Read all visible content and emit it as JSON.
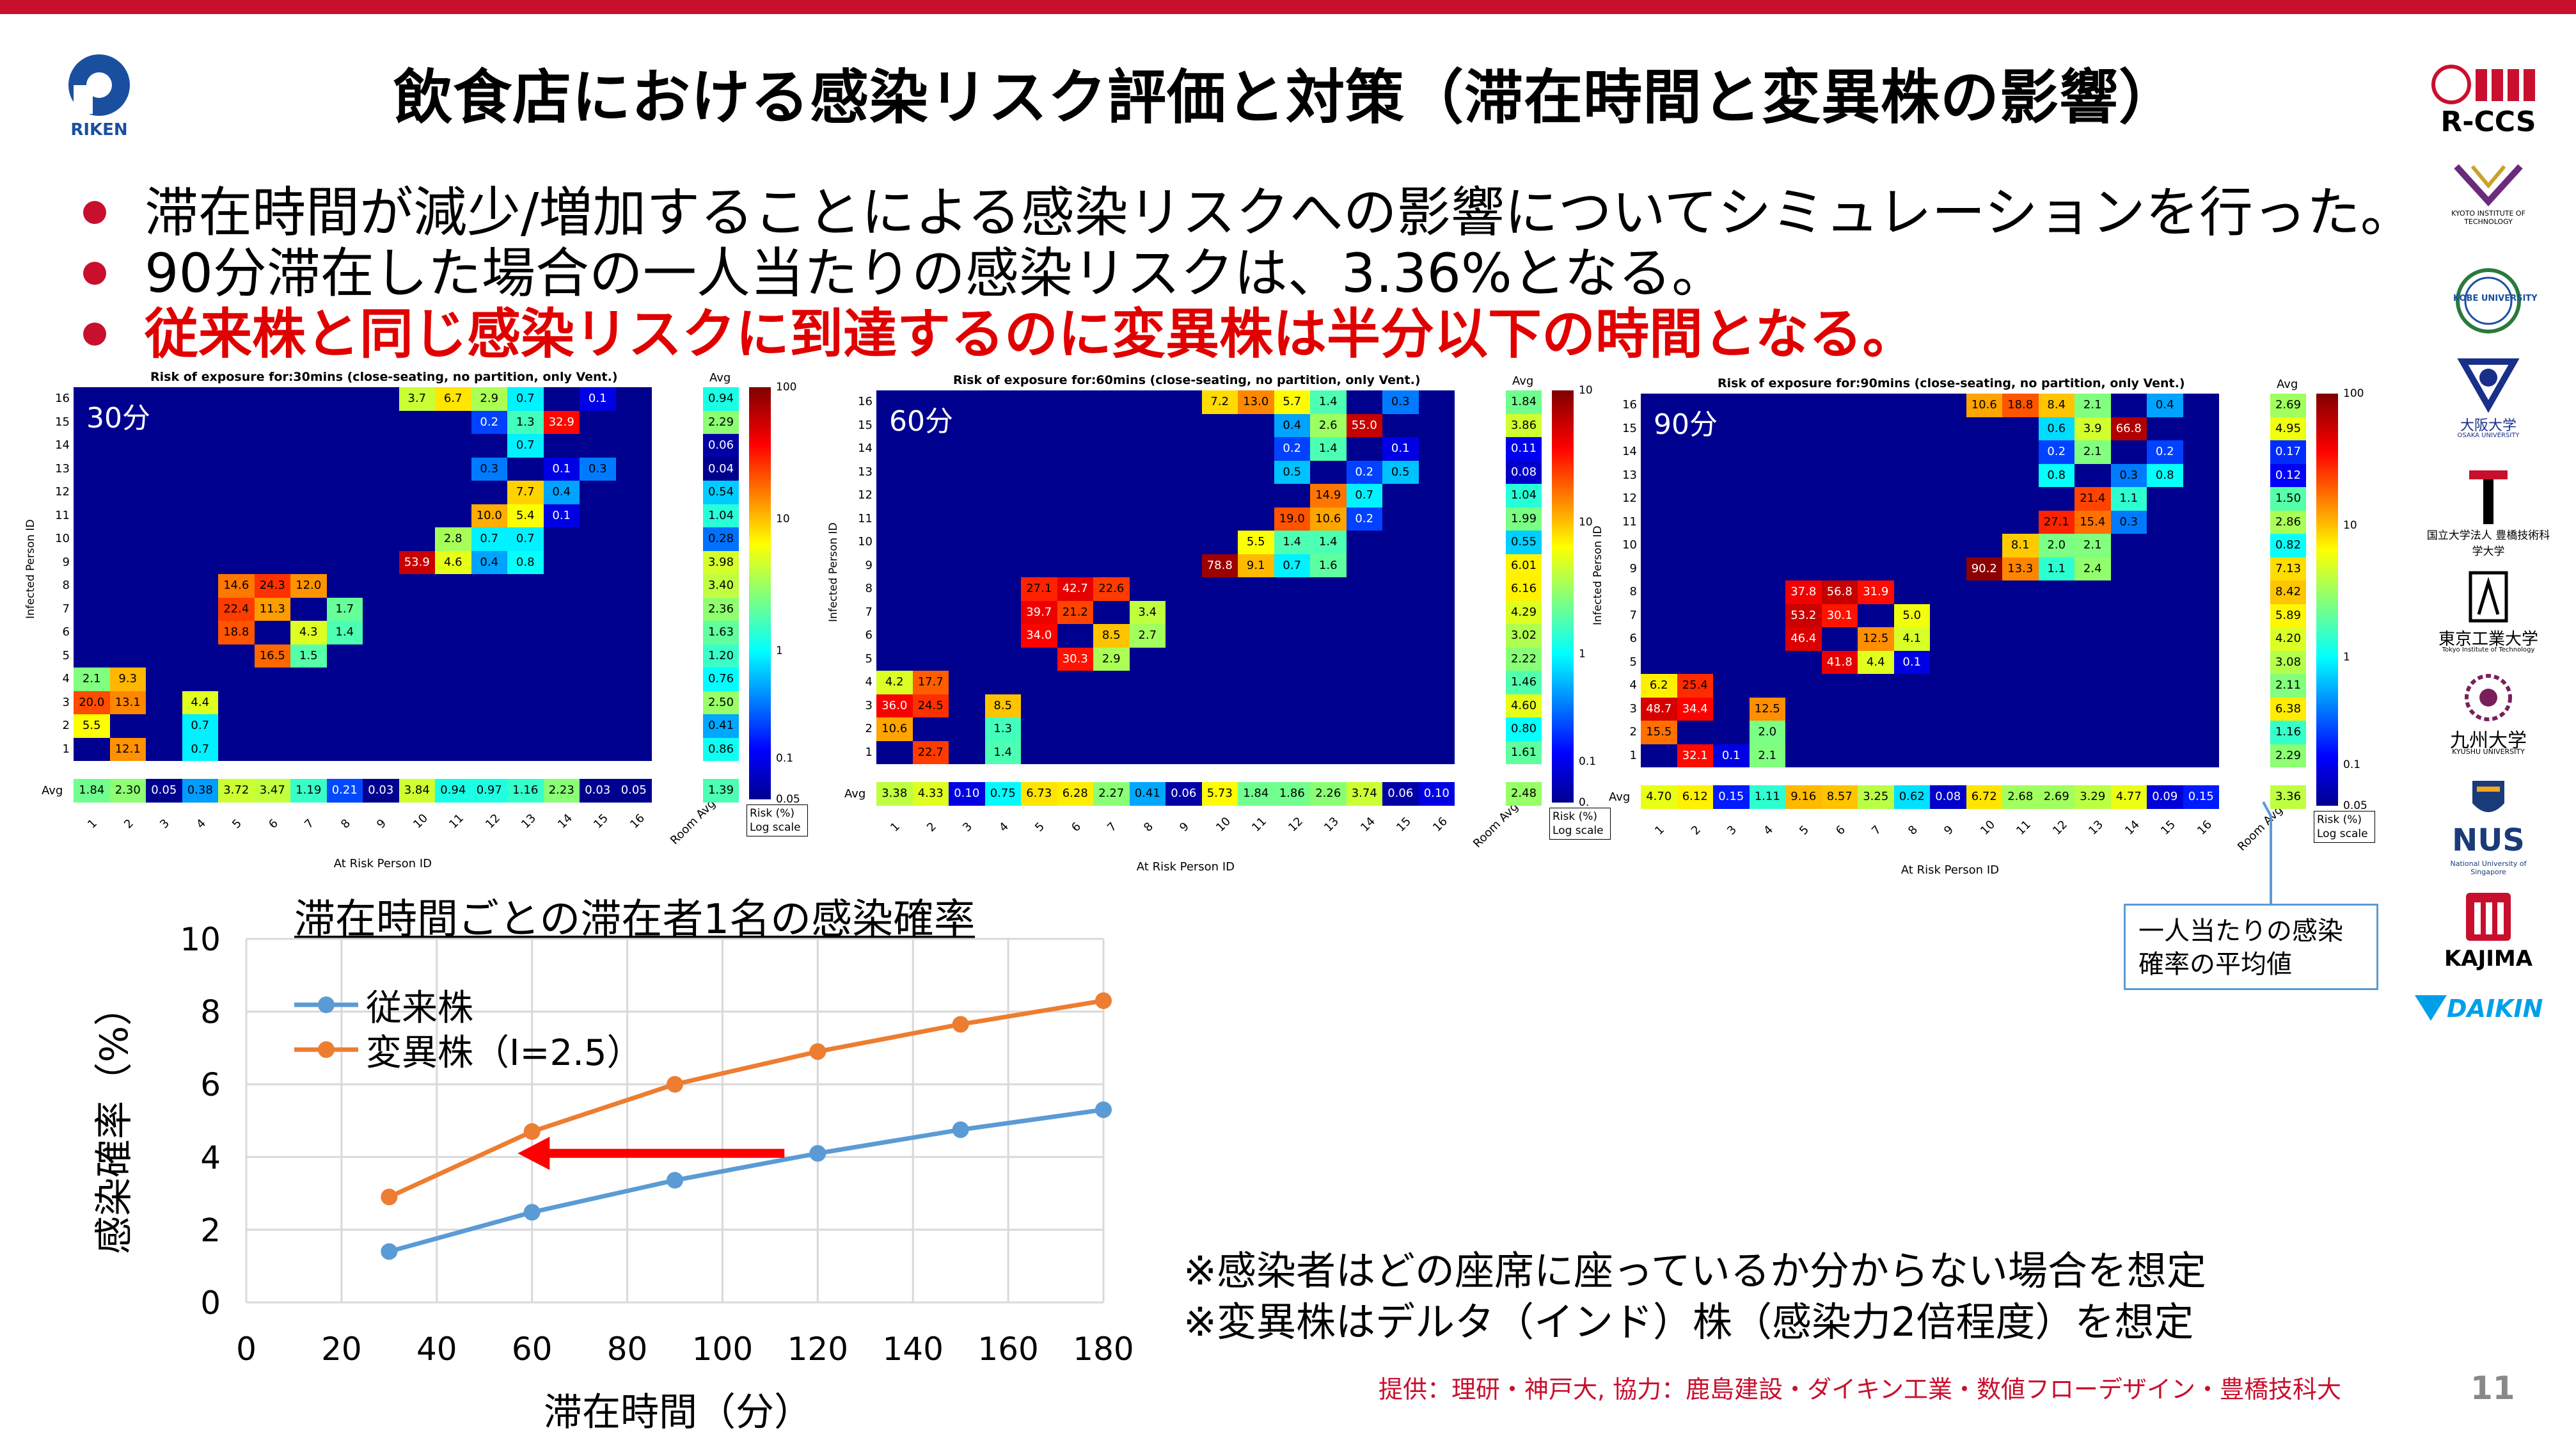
{
  "slide": {
    "title": "飲食店における感染リスク評価と対策（滞在時間と変異株の影響）",
    "bullets": [
      "滞在時間が減少/増加することによる感染リスクへの影響についてシミュレーションを行った。",
      "90分滞在した場合の一人当たりの感染リスクは、3.36%となる。",
      "従来株と同じ感染リスクに到達するのに変異株は半分以下の時間となる。"
    ],
    "notes": [
      "※感染者はどの座席に座っているか分からない場合を想定",
      "※変異株はデルタ（インド）株（感染力2倍程度）を想定"
    ],
    "credit": "提供：理研・神戸大, 協力：鹿島建設・ダイキン工業・数値フローデザイン・豊橋技科大",
    "page_number": "11",
    "callout": "一人当たりの感染確率の平均値",
    "colors": {
      "accent_red": "#c8102e",
      "bullet_red": "#e00000",
      "series_blue": "#5b9bd5",
      "series_orange": "#ed7d31",
      "heatmap_bg": "#00008f"
    }
  },
  "logos": {
    "riken": "RIKEN",
    "rccs": "R-CCS",
    "kyoto": "KYOTO INSTITUTE OF TECHNOLOGY",
    "kobe": "KOBE UNIVERSITY",
    "osaka": "大阪大学",
    "osaka_sub": "OSAKA UNIVERSITY",
    "toyohashi": "国立大学法人 豊橋技術科学大学",
    "tokyotech": "東京工業大学",
    "tokyotech_sub": "Tokyo Institute of Technology",
    "kyushu": "九州大学",
    "kyushu_sub": "KYUSHU UNIVERSITY",
    "nus": "NUS",
    "nus_sub": "National University of Singapore",
    "kajima": "KAJIMA",
    "daikin": "DAIKIN"
  },
  "heatmaps": [
    {
      "label": "30分",
      "title": "Risk of exposure for:30mins (close-seating, no partition, only Vent.)",
      "ylabel": "Infected Person ID",
      "xlabel": "At Risk Person ID",
      "avg_header": "Avg",
      "room_avg_label": "Room Avg",
      "scale_label": "Risk (%) Log scale",
      "colorbar_ticks": [
        "100",
        "10",
        "1",
        "0.1",
        "0.05"
      ],
      "room_avg": "1.39",
      "row_avgs": [
        "0.94",
        "2.29",
        "0.06",
        "0.04",
        "0.54",
        "1.04",
        "0.28",
        "3.98",
        "3.40",
        "2.36",
        "1.63",
        "1.20",
        "0.76",
        "2.50",
        "0.41",
        "0.86"
      ],
      "col_avgs": [
        "1.84",
        "2.30",
        "0.05",
        "0.38",
        "3.72",
        "3.47",
        "1.19",
        "0.21",
        "0.03",
        "3.84",
        "0.94",
        "0.97",
        "1.16",
        "2.23",
        "0.03",
        "0.05"
      ],
      "cells": [
        {
          "row": 16,
          "col": 10,
          "value": "3.7"
        },
        {
          "row": 16,
          "col": 11,
          "value": "6.7"
        },
        {
          "row": 16,
          "col": 12,
          "value": "2.9"
        },
        {
          "row": 16,
          "col": 13,
          "value": "0.7"
        },
        {
          "row": 16,
          "col": 15,
          "value": "0.1"
        },
        {
          "row": 15,
          "col": 12,
          "value": "0.2"
        },
        {
          "row": 15,
          "col": 13,
          "value": "1.3"
        },
        {
          "row": 15,
          "col": 14,
          "value": "32.9"
        },
        {
          "row": 14,
          "col": 13,
          "value": "0.7"
        },
        {
          "row": 13,
          "col": 12,
          "value": "0.3"
        },
        {
          "row": 13,
          "col": 14,
          "value": "0.1"
        },
        {
          "row": 13,
          "col": 15,
          "value": "0.3"
        },
        {
          "row": 12,
          "col": 13,
          "value": "7.7"
        },
        {
          "row": 12,
          "col": 14,
          "value": "0.4"
        },
        {
          "row": 11,
          "col": 12,
          "value": "10.0"
        },
        {
          "row": 11,
          "col": 13,
          "value": "5.4"
        },
        {
          "row": 11,
          "col": 14,
          "value": "0.1"
        },
        {
          "row": 10,
          "col": 11,
          "value": "2.8"
        },
        {
          "row": 10,
          "col": 12,
          "value": "0.7"
        },
        {
          "row": 10,
          "col": 13,
          "value": "0.7"
        },
        {
          "row": 9,
          "col": 10,
          "value": "53.9"
        },
        {
          "row": 9,
          "col": 11,
          "value": "4.6"
        },
        {
          "row": 9,
          "col": 12,
          "value": "0.4"
        },
        {
          "row": 9,
          "col": 13,
          "value": "0.8"
        },
        {
          "row": 8,
          "col": 5,
          "value": "14.6"
        },
        {
          "row": 8,
          "col": 6,
          "value": "24.3"
        },
        {
          "row": 8,
          "col": 7,
          "value": "12.0"
        },
        {
          "row": 7,
          "col": 5,
          "value": "22.4"
        },
        {
          "row": 7,
          "col": 6,
          "value": "11.3"
        },
        {
          "row": 7,
          "col": 8,
          "value": "1.7"
        },
        {
          "row": 6,
          "col": 5,
          "value": "18.8"
        },
        {
          "row": 6,
          "col": 7,
          "value": "4.3"
        },
        {
          "row": 6,
          "col": 8,
          "value": "1.4"
        },
        {
          "row": 5,
          "col": 6,
          "value": "16.5"
        },
        {
          "row": 5,
          "col": 7,
          "value": "1.5"
        },
        {
          "row": 4,
          "col": 1,
          "value": "2.1"
        },
        {
          "row": 4,
          "col": 2,
          "value": "9.3"
        },
        {
          "row": 3,
          "col": 1,
          "value": "20.0"
        },
        {
          "row": 3,
          "col": 2,
          "value": "13.1"
        },
        {
          "row": 3,
          "col": 4,
          "value": "4.4"
        },
        {
          "row": 2,
          "col": 1,
          "value": "5.5"
        },
        {
          "row": 2,
          "col": 4,
          "value": "0.7"
        },
        {
          "row": 1,
          "col": 2,
          "value": "12.1"
        },
        {
          "row": 1,
          "col": 4,
          "value": "0.7"
        }
      ]
    },
    {
      "label": "60分",
      "title": "Risk of exposure for:60mins (close-seating, no partition, only Vent.)",
      "ylabel": "Infected Person ID",
      "xlabel": "At Risk Person ID",
      "avg_header": "Avg",
      "room_avg_label": "Room Avg",
      "scale_label": "Risk (%) Log scale",
      "colorbar_ticks": [
        "10",
        "10",
        "1",
        "0.1",
        "0."
      ],
      "room_avg": "2.48",
      "row_avgs": [
        "1.84",
        "3.86",
        "0.11",
        "0.08",
        "1.04",
        "1.99",
        "0.55",
        "6.01",
        "6.16",
        "4.29",
        "3.02",
        "2.22",
        "1.46",
        "4.60",
        "0.80",
        "1.61"
      ],
      "col_avgs": [
        "3.38",
        "4.33",
        "0.10",
        "0.75",
        "6.73",
        "6.28",
        "2.27",
        "0.41",
        "0.06",
        "5.73",
        "1.84",
        "1.86",
        "2.26",
        "3.74",
        "0.06",
        "0.10"
      ],
      "cells": [
        {
          "row": 16,
          "col": 10,
          "value": "7.2"
        },
        {
          "row": 16,
          "col": 11,
          "value": "13.0"
        },
        {
          "row": 16,
          "col": 12,
          "value": "5.7"
        },
        {
          "row": 16,
          "col": 13,
          "value": "1.4"
        },
        {
          "row": 16,
          "col": 15,
          "value": "0.3"
        },
        {
          "row": 15,
          "col": 12,
          "value": "0.4"
        },
        {
          "row": 15,
          "col": 13,
          "value": "2.6"
        },
        {
          "row": 15,
          "col": 14,
          "value": "55.0"
        },
        {
          "row": 14,
          "col": 12,
          "value": "0.2"
        },
        {
          "row": 14,
          "col": 13,
          "value": "1.4"
        },
        {
          "row": 14,
          "col": 15,
          "value": "0.1"
        },
        {
          "row": 13,
          "col": 12,
          "value": "0.5"
        },
        {
          "row": 13,
          "col": 14,
          "value": "0.2"
        },
        {
          "row": 13,
          "col": 15,
          "value": "0.5"
        },
        {
          "row": 12,
          "col": 13,
          "value": "14.9"
        },
        {
          "row": 12,
          "col": 14,
          "value": "0.7"
        },
        {
          "row": 11,
          "col": 12,
          "value": "19.0"
        },
        {
          "row": 11,
          "col": 13,
          "value": "10.6"
        },
        {
          "row": 11,
          "col": 14,
          "value": "0.2"
        },
        {
          "row": 10,
          "col": 11,
          "value": "5.5"
        },
        {
          "row": 10,
          "col": 12,
          "value": "1.4"
        },
        {
          "row": 10,
          "col": 13,
          "value": "1.4"
        },
        {
          "row": 9,
          "col": 10,
          "value": "78.8"
        },
        {
          "row": 9,
          "col": 11,
          "value": "9.1"
        },
        {
          "row": 9,
          "col": 12,
          "value": "0.7"
        },
        {
          "row": 9,
          "col": 13,
          "value": "1.6"
        },
        {
          "row": 8,
          "col": 5,
          "value": "27.1"
        },
        {
          "row": 8,
          "col": 6,
          "value": "42.7"
        },
        {
          "row": 8,
          "col": 7,
          "value": "22.6"
        },
        {
          "row": 7,
          "col": 5,
          "value": "39.7"
        },
        {
          "row": 7,
          "col": 6,
          "value": "21.2"
        },
        {
          "row": 7,
          "col": 8,
          "value": "3.4"
        },
        {
          "row": 6,
          "col": 5,
          "value": "34.0"
        },
        {
          "row": 6,
          "col": 7,
          "value": "8.5"
        },
        {
          "row": 6,
          "col": 8,
          "value": "2.7"
        },
        {
          "row": 5,
          "col": 6,
          "value": "30.3"
        },
        {
          "row": 5,
          "col": 7,
          "value": "2.9"
        },
        {
          "row": 4,
          "col": 1,
          "value": "4.2"
        },
        {
          "row": 4,
          "col": 2,
          "value": "17.7"
        },
        {
          "row": 3,
          "col": 1,
          "value": "36.0"
        },
        {
          "row": 3,
          "col": 2,
          "value": "24.5"
        },
        {
          "row": 3,
          "col": 4,
          "value": "8.5"
        },
        {
          "row": 2,
          "col": 1,
          "value": "10.6"
        },
        {
          "row": 2,
          "col": 4,
          "value": "1.3"
        },
        {
          "row": 1,
          "col": 2,
          "value": "22.7"
        },
        {
          "row": 1,
          "col": 4,
          "value": "1.4"
        }
      ]
    },
    {
      "label": "90分",
      "title": "Risk of exposure for:90mins (close-seating, no partition, only Vent.)",
      "ylabel": "Infected Person ID",
      "xlabel": "At Risk Person ID",
      "avg_header": "Avg",
      "room_avg_label": "Room Avg",
      "scale_label": "Risk (%) Log scale",
      "colorbar_ticks": [
        "100",
        "10",
        "1",
        "0.1",
        "0.05"
      ],
      "room_avg": "3.36",
      "row_avgs": [
        "2.69",
        "4.95",
        "0.17",
        "0.12",
        "1.50",
        "2.86",
        "0.82",
        "7.13",
        "8.42",
        "5.89",
        "4.20",
        "3.08",
        "2.11",
        "6.38",
        "1.16",
        "2.29"
      ],
      "col_avgs": [
        "4.70",
        "6.12",
        "0.15",
        "1.11",
        "9.16",
        "8.57",
        "3.25",
        "0.62",
        "0.08",
        "6.72",
        "2.68",
        "2.69",
        "3.29",
        "4.77",
        "0.09",
        "0.15"
      ],
      "cells": [
        {
          "row": 16,
          "col": 10,
          "value": "10.6"
        },
        {
          "row": 16,
          "col": 11,
          "value": "18.8"
        },
        {
          "row": 16,
          "col": 12,
          "value": "8.4"
        },
        {
          "row": 16,
          "col": 13,
          "value": "2.1"
        },
        {
          "row": 16,
          "col": 15,
          "value": "0.4"
        },
        {
          "row": 15,
          "col": 12,
          "value": "0.6"
        },
        {
          "row": 15,
          "col": 13,
          "value": "3.9"
        },
        {
          "row": 15,
          "col": 14,
          "value": "66.8"
        },
        {
          "row": 14,
          "col": 12,
          "value": "0.2"
        },
        {
          "row": 14,
          "col": 13,
          "value": "2.1"
        },
        {
          "row": 14,
          "col": 15,
          "value": "0.2"
        },
        {
          "row": 13,
          "col": 12,
          "value": "0.8"
        },
        {
          "row": 13,
          "col": 14,
          "value": "0.3"
        },
        {
          "row": 13,
          "col": 15,
          "value": "0.8"
        },
        {
          "row": 12,
          "col": 13,
          "value": "21.4"
        },
        {
          "row": 12,
          "col": 14,
          "value": "1.1"
        },
        {
          "row": 11,
          "col": 12,
          "value": "27.1"
        },
        {
          "row": 11,
          "col": 13,
          "value": "15.4"
        },
        {
          "row": 11,
          "col": 14,
          "value": "0.3"
        },
        {
          "row": 10,
          "col": 11,
          "value": "8.1"
        },
        {
          "row": 10,
          "col": 12,
          "value": "2.0"
        },
        {
          "row": 10,
          "col": 13,
          "value": "2.1"
        },
        {
          "row": 9,
          "col": 10,
          "value": "90.2"
        },
        {
          "row": 9,
          "col": 11,
          "value": "13.3"
        },
        {
          "row": 9,
          "col": 12,
          "value": "1.1"
        },
        {
          "row": 9,
          "col": 13,
          "value": "2.4"
        },
        {
          "row": 8,
          "col": 5,
          "value": "37.8"
        },
        {
          "row": 8,
          "col": 6,
          "value": "56.8"
        },
        {
          "row": 8,
          "col": 7,
          "value": "31.9"
        },
        {
          "row": 7,
          "col": 5,
          "value": "53.2"
        },
        {
          "row": 7,
          "col": 6,
          "value": "30.1"
        },
        {
          "row": 7,
          "col": 8,
          "value": "5.0"
        },
        {
          "row": 6,
          "col": 5,
          "value": "46.4"
        },
        {
          "row": 6,
          "col": 7,
          "value": "12.5"
        },
        {
          "row": 6,
          "col": 8,
          "value": "4.1"
        },
        {
          "row": 5,
          "col": 6,
          "value": "41.8"
        },
        {
          "row": 5,
          "col": 7,
          "value": "4.4"
        },
        {
          "row": 5,
          "col": 8,
          "value": "0.1"
        },
        {
          "row": 4,
          "col": 1,
          "value": "6.2"
        },
        {
          "row": 4,
          "col": 2,
          "value": "25.4"
        },
        {
          "row": 3,
          "col": 1,
          "value": "48.7"
        },
        {
          "row": 3,
          "col": 2,
          "value": "34.4"
        },
        {
          "row": 3,
          "col": 4,
          "value": "12.5"
        },
        {
          "row": 2,
          "col": 1,
          "value": "15.5"
        },
        {
          "row": 2,
          "col": 4,
          "value": "2.0"
        },
        {
          "row": 1,
          "col": 2,
          "value": "32.1"
        },
        {
          "row": 1,
          "col": 3,
          "value": "0.1"
        },
        {
          "row": 1,
          "col": 4,
          "value": "2.1"
        }
      ]
    }
  ],
  "chart_data": {
    "type": "line",
    "title": "滞在時間ごとの滞在者1名の感染確率",
    "xlabel": "滞在時間（分）",
    "ylabel": "感染確率（%）",
    "x": [
      30,
      60,
      90,
      120,
      150,
      180
    ],
    "xlim": [
      0,
      180
    ],
    "ylim": [
      0,
      10
    ],
    "xticks": [
      "0",
      "20",
      "40",
      "60",
      "80",
      "100",
      "120",
      "140",
      "160",
      "180"
    ],
    "yticks": [
      "0",
      "2",
      "4",
      "6",
      "8",
      "10"
    ],
    "grid": true,
    "legend": "top-left",
    "series": [
      {
        "name": "従来株",
        "values": [
          1.4,
          2.48,
          3.36,
          4.1,
          4.75,
          5.3
        ],
        "color": "#5b9bd5"
      },
      {
        "name": "変異株（I=2.5）",
        "values": [
          2.9,
          4.7,
          6.0,
          6.9,
          7.65,
          8.3
        ],
        "color": "#ed7d31"
      }
    ],
    "annotation_arrow": {
      "from_x": 113,
      "to_x": 57,
      "y": 4.1,
      "color": "#ff0000"
    }
  }
}
